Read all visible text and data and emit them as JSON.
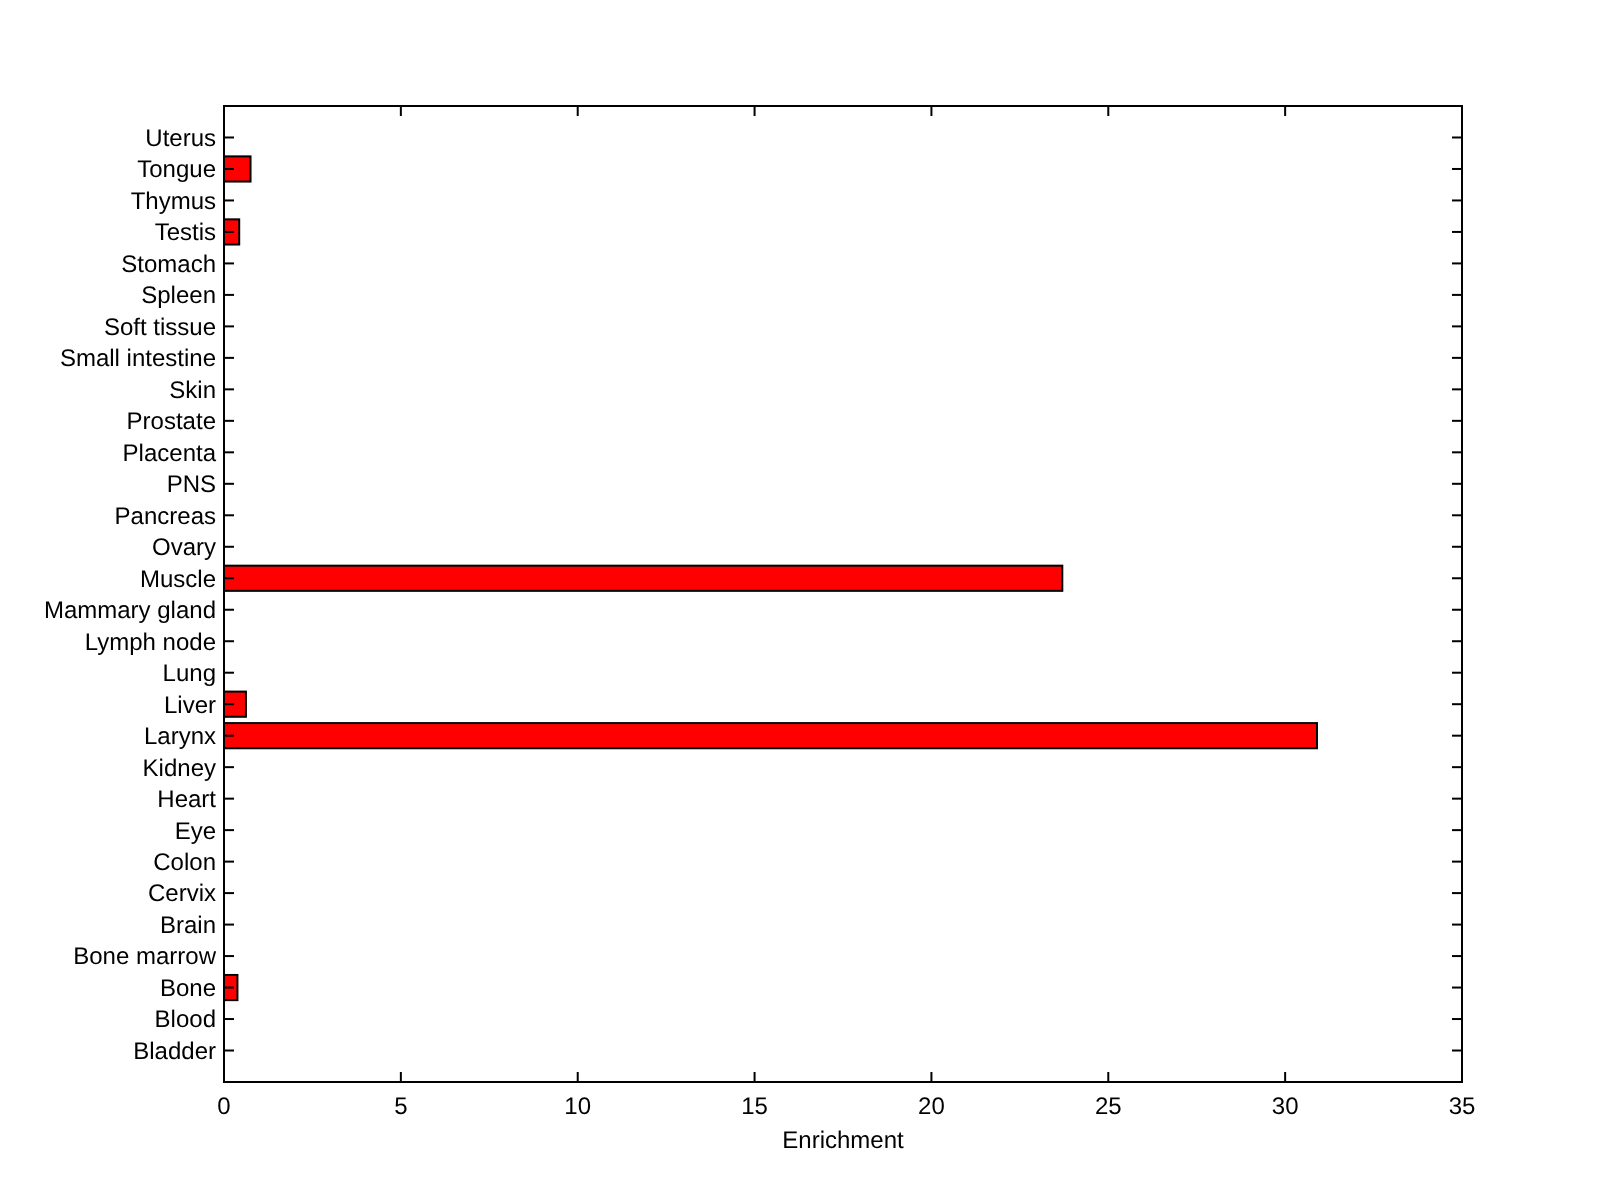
{
  "chart_data": {
    "type": "bar",
    "orientation": "horizontal",
    "xlabel": "Enrichment",
    "categories": [
      "Uterus",
      "Tongue",
      "Thymus",
      "Testis",
      "Stomach",
      "Spleen",
      "Soft tissue",
      "Small intestine",
      "Skin",
      "Prostate",
      "Placenta",
      "PNS",
      "Pancreas",
      "Ovary",
      "Muscle",
      "Mammary gland",
      "Lymph node",
      "Lung",
      "Liver",
      "Larynx",
      "Kidney",
      "Heart",
      "Eye",
      "Colon",
      "Cervix",
      "Brain",
      "Bone marrow",
      "Bone",
      "Blood",
      "Bladder"
    ],
    "values": [
      0,
      0.75,
      0,
      0.43,
      0,
      0,
      0,
      0,
      0,
      0,
      0,
      0,
      0,
      0,
      23.7,
      0,
      0,
      0,
      0.62,
      30.9,
      0,
      0,
      0,
      0,
      0,
      0,
      0,
      0.38,
      0,
      0
    ],
    "color": "#ff0000",
    "xlim": [
      0,
      35
    ],
    "xticks": [
      0,
      5,
      10,
      15,
      20,
      25,
      30,
      35
    ],
    "grid": false
  }
}
